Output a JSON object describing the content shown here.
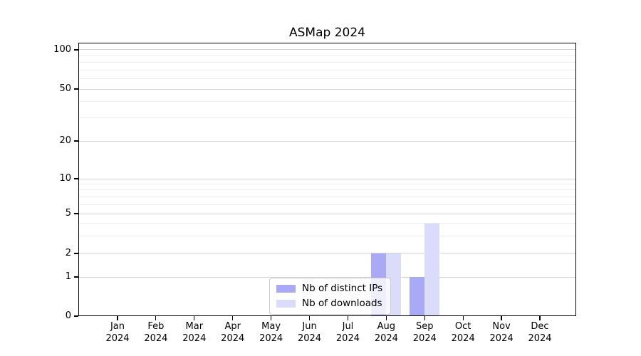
{
  "figure": {
    "background": "#ffffff"
  },
  "chart_data": {
    "type": "bar",
    "title": "ASMap 2024",
    "categories": [
      "Jan 2024",
      "Feb 2024",
      "Mar 2024",
      "Apr 2024",
      "May 2024",
      "Jun 2024",
      "Jul 2024",
      "Aug 2024",
      "Sep 2024",
      "Oct 2024",
      "Nov 2024",
      "Dec 2024"
    ],
    "series": [
      {
        "name": "Nb of distinct IPs",
        "color": "#a9a9f5",
        "values": [
          0,
          0,
          0,
          0,
          0,
          0,
          0,
          2,
          1,
          0,
          0,
          0
        ]
      },
      {
        "name": "Nb of downloads",
        "color": "#dbdbfa",
        "values": [
          0,
          0,
          0,
          0,
          0,
          0,
          0,
          2,
          4,
          0,
          0,
          0
        ]
      }
    ],
    "xlabel": "",
    "ylabel": "",
    "yscale": "symlog",
    "ylim": [
      0,
      110
    ],
    "y_major_ticks": [
      0,
      1,
      2,
      5,
      10,
      20,
      50,
      100
    ],
    "y_minor_ticks": [
      3,
      4,
      6,
      7,
      8,
      9,
      30,
      40,
      60,
      70,
      80,
      90
    ],
    "grid": "horizontal, major and minor",
    "legend_position": "lower center, inside axes"
  },
  "colors": {
    "bar_distinct_ips": "#a9a9f5",
    "bar_downloads": "#dbdbfa",
    "major_grid": "#d3d3d3",
    "minor_grid": "#ededed",
    "spine": "#000000",
    "legend_border": "#cccccc",
    "text": "#000000"
  }
}
